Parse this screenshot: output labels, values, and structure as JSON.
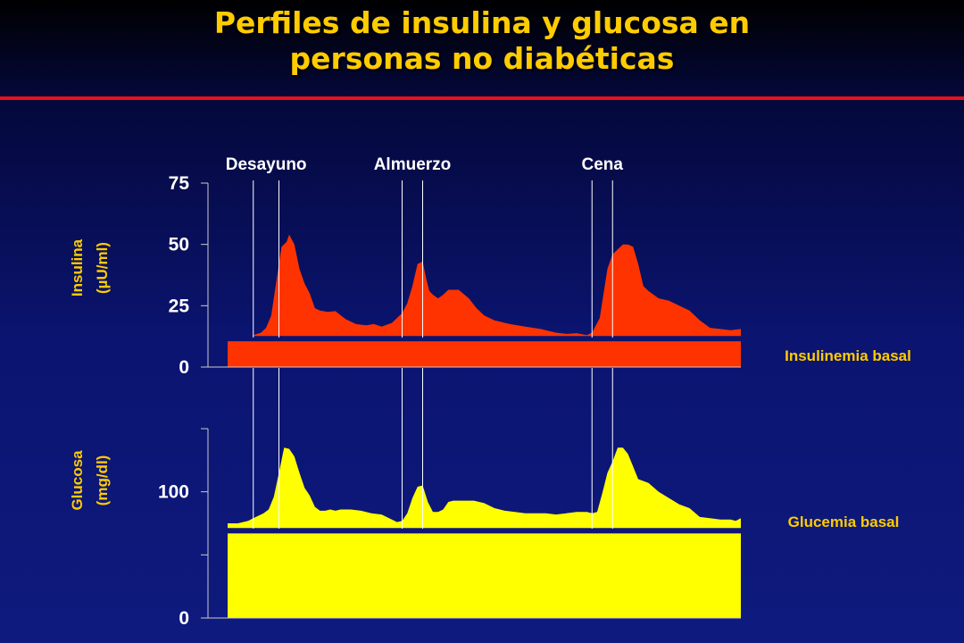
{
  "header": {
    "title_line1": "Perfiles de insulina y glucosa en",
    "title_line2": "personas no diabéticas"
  },
  "chart_data": [
    {
      "type": "area",
      "panel": "insulin",
      "ylabel_line1": "Insulina",
      "ylabel_line2": "(µU/ml)",
      "ylim": [
        0,
        75
      ],
      "yticks": [
        0,
        25,
        50,
        75
      ],
      "ytick_labels": [
        "0",
        "25",
        "50",
        "75"
      ],
      "x_range": [
        0,
        100
      ],
      "meals": [
        {
          "name": "Desayuno",
          "start": 5,
          "end": 10
        },
        {
          "name": "Almuerzo",
          "start": 34,
          "end": 38
        },
        {
          "name": "Cena",
          "start": 71,
          "end": 75
        }
      ],
      "basal": {
        "label": "Insulinemia basal",
        "value": 10.5,
        "color": "#ff3300"
      },
      "series": [
        {
          "color": "#ff3300",
          "x": [
            5,
            6.5,
            7.5,
            8.5,
            9.5,
            10.5,
            11.5,
            12,
            13,
            14,
            15,
            16,
            17,
            18,
            19.5,
            21,
            23,
            25,
            27,
            28.5,
            30,
            32,
            34,
            35,
            36,
            37,
            38,
            38.7,
            39.3,
            40,
            41,
            42,
            43,
            45,
            47,
            48.5,
            50,
            52,
            55,
            58,
            61,
            64,
            66,
            68,
            70,
            71,
            72.5,
            74,
            75,
            76,
            77,
            78,
            79,
            80,
            81,
            82,
            84,
            86,
            88,
            90,
            92,
            94,
            96,
            98,
            100
          ],
          "y": [
            13,
            14,
            16,
            21,
            35,
            49,
            51,
            54,
            50,
            40,
            34,
            30,
            24,
            23,
            22.5,
            22.8,
            19.5,
            17.5,
            17,
            17.5,
            16.5,
            18,
            22,
            26,
            33,
            42,
            43,
            36,
            31,
            29.5,
            28,
            29.5,
            31.5,
            31.5,
            28,
            24,
            21,
            19,
            17.5,
            16.5,
            15.5,
            14,
            13.5,
            13.8,
            13,
            14,
            20,
            40,
            46,
            48,
            50,
            50,
            49,
            42,
            33,
            31,
            28,
            27,
            25,
            23,
            19,
            16,
            15.5,
            15,
            15.5
          ]
        }
      ]
    },
    {
      "type": "area",
      "panel": "glucose",
      "ylabel_line1": "Glucosa",
      "ylabel_line2": "(mg/dl)",
      "ylim": [
        0,
        150
      ],
      "yticks": [
        0,
        50,
        100,
        150
      ],
      "ytick_labels": [
        "0",
        "",
        "100",
        ""
      ],
      "x_range": [
        0,
        100
      ],
      "basal": {
        "label": "Glucemia basal",
        "value": 67,
        "color": "#ffff00"
      },
      "series": [
        {
          "color": "#ffff00",
          "x": [
            0,
            2,
            3,
            4,
            5,
            6,
            7,
            8,
            9,
            10,
            11,
            12,
            13,
            14,
            15,
            16,
            17,
            18,
            19,
            20,
            21,
            22,
            24,
            26,
            28,
            30,
            32,
            33,
            34,
            35,
            36,
            37,
            38,
            39,
            40,
            41,
            42,
            43,
            44,
            46,
            48,
            50,
            52,
            54,
            56,
            58,
            60,
            62,
            64,
            66,
            68,
            70,
            71,
            72,
            73,
            74,
            75,
            76,
            77,
            78,
            79,
            80,
            82,
            84,
            86,
            88,
            90,
            92,
            94,
            96,
            98,
            99,
            100
          ],
          "y": [
            75,
            75,
            76,
            77,
            79,
            81,
            83,
            86,
            96,
            115,
            135,
            134,
            128,
            115,
            103,
            97,
            88,
            85,
            85,
            86,
            85,
            86,
            86,
            85,
            83,
            82,
            78,
            76,
            77,
            83,
            95,
            104,
            105,
            92,
            84,
            84,
            86,
            92,
            93,
            93,
            93,
            91,
            87,
            85,
            84,
            83,
            83,
            83,
            82,
            83,
            84,
            84,
            83,
            84,
            99,
            115,
            124,
            135,
            135,
            130,
            120,
            110,
            107,
            100,
            95,
            90,
            87,
            80,
            79,
            78,
            78,
            77,
            79
          ]
        }
      ]
    }
  ]
}
